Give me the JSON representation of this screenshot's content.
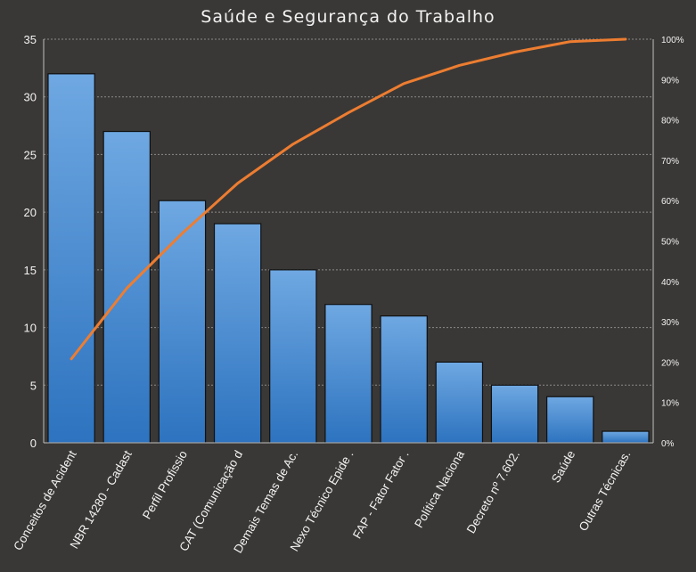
{
  "chart_data": {
    "type": "bar",
    "title": "Saúde e Segurança do Trabalho",
    "categories": [
      "Conceitos de Acident",
      "NBR 14280 - Cadast",
      "Perfil Profissio",
      "CAT (Comunicação d",
      "Demais Temas de Ac.",
      "Nexo Técnico Epide .",
      "FAP - Fator Fator .",
      "Política Naciona",
      "Decreto nº 7.602.",
      "Saúde",
      "Outras Técnicas."
    ],
    "values": [
      32,
      27,
      21,
      19,
      15,
      12,
      11,
      7,
      5,
      4,
      1
    ],
    "cumulative_percent": [
      20.8,
      38.3,
      51.9,
      64.3,
      74.0,
      81.8,
      89.0,
      93.5,
      96.8,
      99.4,
      100
    ],
    "ylim": [
      0,
      35
    ],
    "yticks": [
      "0",
      "5",
      "10",
      "15",
      "20",
      "25",
      "30",
      "35"
    ],
    "y2lim": [
      0,
      100
    ],
    "y2ticks": [
      "0%",
      "10%",
      "20%",
      "30%",
      "40%",
      "50%",
      "60%",
      "70%",
      "80%",
      "90%",
      "100%"
    ],
    "grid": true,
    "xlabel": "",
    "ylabel": "",
    "colors": {
      "background": "#3a3836",
      "bar_top": "#6fa8e2",
      "bar_bottom": "#2d73bf",
      "line": "#ed7d31",
      "grid": "#8a8a8a",
      "text": "#f2f2f2"
    }
  }
}
